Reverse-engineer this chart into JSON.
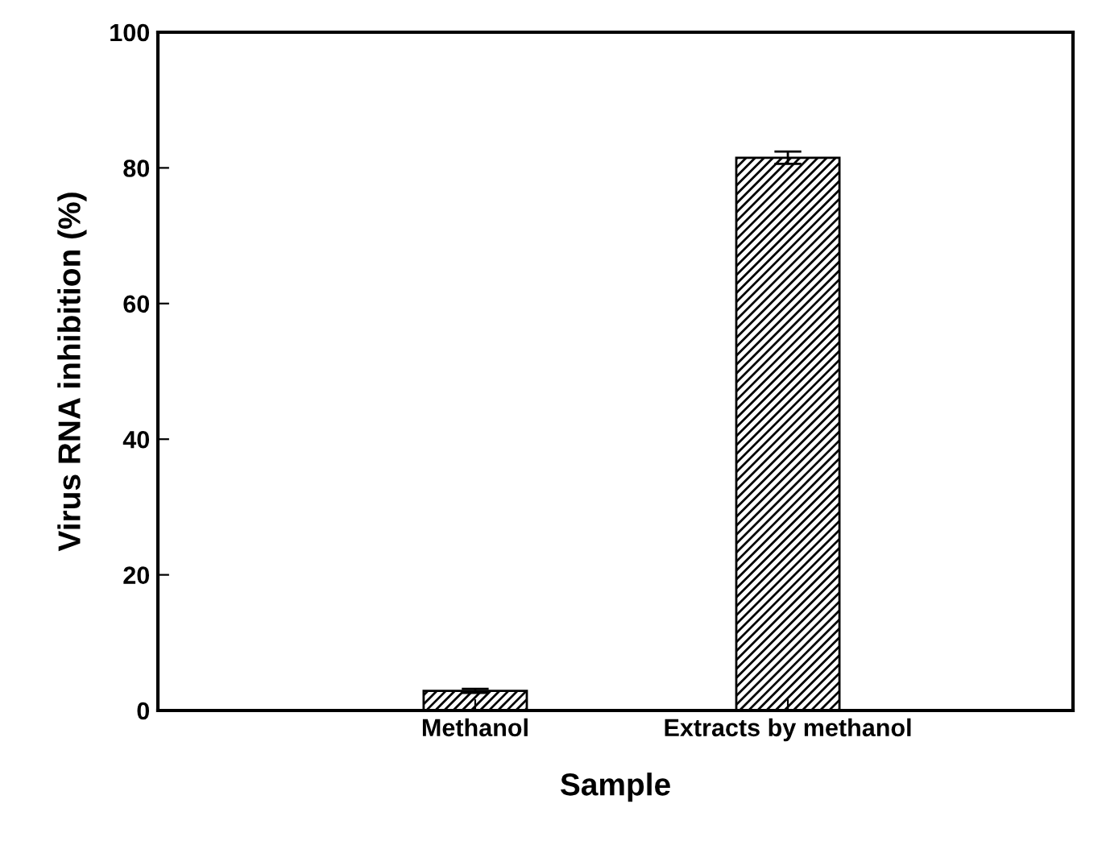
{
  "chart_data": {
    "type": "bar",
    "xlabel": "Sample",
    "ylabel": "Virus RNA inhibition (%)",
    "categories": [
      "Methanol",
      "Extracts by methanol"
    ],
    "values": [
      2.9,
      81.5
    ],
    "errors": [
      0.3,
      0.9
    ],
    "color": "#000000",
    "ylim": [
      0,
      100
    ],
    "yticks": [
      0,
      20,
      40,
      60,
      80,
      100
    ],
    "grid": false
  }
}
